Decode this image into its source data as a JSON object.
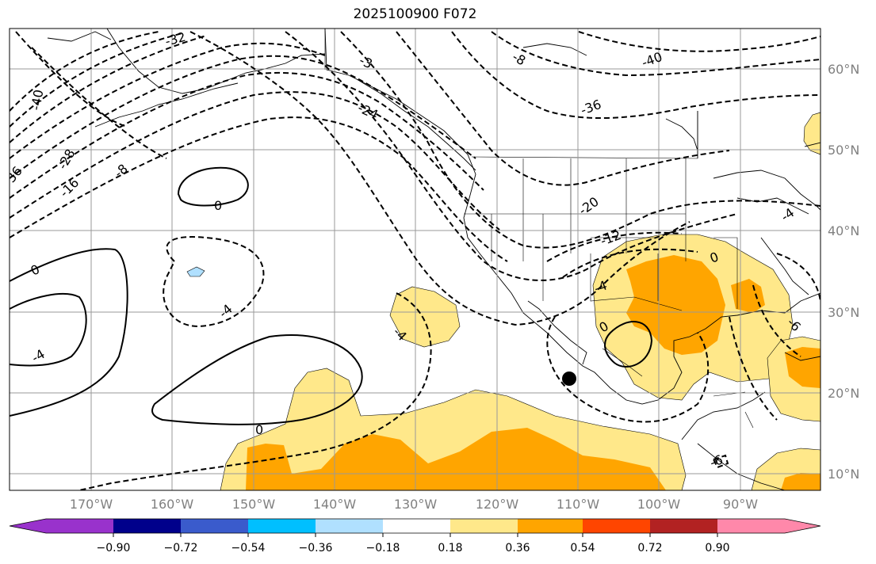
{
  "title": "2025100900 F072",
  "map": {
    "lon_labels": [
      "170°W",
      "160°W",
      "150°W",
      "140°W",
      "130°W",
      "120°W",
      "110°W",
      "100°W",
      "90°W"
    ],
    "lat_labels": [
      "60°N",
      "50°N",
      "40°N",
      "30°N",
      "20°N",
      "10°N"
    ],
    "contour_labels": [
      "-32",
      "-3",
      "-24",
      "-40",
      "-28",
      "-16",
      "-8",
      "-36",
      "-8",
      "-4",
      "-4",
      "-36",
      "-40",
      "-20",
      "-12",
      "-4",
      "0",
      "0",
      "0",
      "0",
      "-4",
      "-4",
      "-6",
      "-6",
      "0"
    ]
  },
  "colorbar": {
    "ticks": [
      "−0.90",
      "−0.72",
      "−0.54",
      "−0.36",
      "−0.18",
      "0.18",
      "0.36",
      "0.54",
      "0.72",
      "0.90"
    ],
    "colors": [
      "#9932cc",
      "#00008b",
      "#3a5bcc",
      "#00bfff",
      "#b0e0ff",
      "#ffffff",
      "#ffe88a",
      "#ffa500",
      "#ff4500",
      "#b22222",
      "#ff88aa"
    ]
  }
}
